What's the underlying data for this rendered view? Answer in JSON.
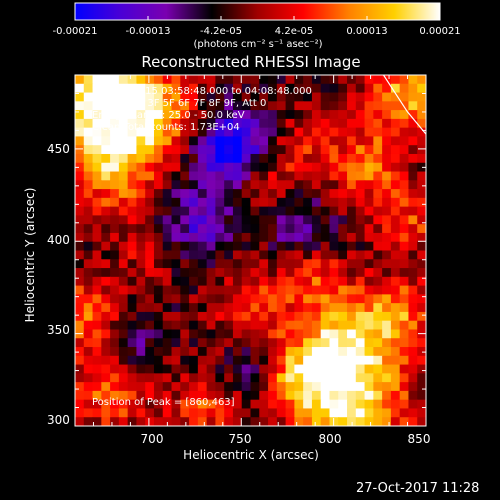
{
  "colorbar": {
    "tick_labels": [
      "-0.00021",
      "-0.00013",
      "-4.2e-05",
      "4.2e-05",
      "0.00013",
      "0.00021"
    ],
    "unit_label": "(photons cm⁻² s⁻¹ asec⁻²)",
    "colormap": [
      "#0000ff",
      "#4a00d6",
      "#7a00b0",
      "#000000",
      "#a00000",
      "#ff0000",
      "#ff8000",
      "#ffd000",
      "#ffffff"
    ]
  },
  "chart_data": {
    "type": "heatmap",
    "title": "Reconstructed RHESSI Image",
    "xlabel": "Heliocentric X (arcsec)",
    "ylabel": "Heliocentric Y (arcsec)",
    "xlim": [
      660,
      850
    ],
    "ylim": [
      300,
      490
    ],
    "x_ticks": [
      700,
      750,
      800,
      850
    ],
    "y_ticks": [
      300,
      350,
      400,
      450
    ],
    "x_tick_labels": [
      "700",
      "750",
      "800",
      "850"
    ],
    "y_tick_labels": [
      "300",
      "350",
      "400",
      "450"
    ],
    "zlim": [
      -0.00021,
      0.00021
    ],
    "info_lines": [
      "28-May-2015 03:58:48.000 to 04:08:48.000",
      "Detectors: 3F 5F 6F 7F 8F 9F, Att 0",
      "Energy Range: 25.0 - 50.0 keV",
      "Clean     Total counts: 1.73E+04"
    ],
    "peak_label": "Position of Peak = [860,463]",
    "limb_curve": [
      [
        827,
        490
      ],
      [
        840,
        470
      ],
      [
        850,
        458
      ]
    ],
    "sources": [
      {
        "x": 668,
        "y": 480,
        "w": 22,
        "v": 0.00021
      },
      {
        "x": 700,
        "y": 470,
        "w": 18,
        "v": 0.00016
      },
      {
        "x": 680,
        "y": 440,
        "w": 18,
        "v": 0.00014
      },
      {
        "x": 840,
        "y": 480,
        "w": 16,
        "v": 0.00017
      },
      {
        "x": 820,
        "y": 440,
        "w": 14,
        "v": 0.00012
      },
      {
        "x": 840,
        "y": 410,
        "w": 12,
        "v": 0.0001
      },
      {
        "x": 765,
        "y": 435,
        "w": 14,
        "v": 9e-05
      },
      {
        "x": 790,
        "y": 455,
        "w": 12,
        "v": 7e-05
      },
      {
        "x": 805,
        "y": 345,
        "w": 18,
        "v": 0.00018
      },
      {
        "x": 810,
        "y": 310,
        "w": 20,
        "v": 0.00021
      },
      {
        "x": 780,
        "y": 325,
        "w": 14,
        "v": 0.00013
      },
      {
        "x": 835,
        "y": 360,
        "w": 14,
        "v": 0.00013
      },
      {
        "x": 755,
        "y": 365,
        "w": 14,
        "v": 0.0001
      },
      {
        "x": 790,
        "y": 380,
        "w": 12,
        "v": 9e-05
      },
      {
        "x": 665,
        "y": 360,
        "w": 14,
        "v": 0.00013
      },
      {
        "x": 680,
        "y": 320,
        "w": 16,
        "v": 0.00012
      },
      {
        "x": 730,
        "y": 310,
        "w": 12,
        "v": 0.0001
      },
      {
        "x": 700,
        "y": 395,
        "w": 12,
        "v": 6e-05
      },
      {
        "x": 745,
        "y": 450,
        "w": 14,
        "v": -0.00021
      },
      {
        "x": 725,
        "y": 410,
        "w": 14,
        "v": -0.00011
      },
      {
        "x": 780,
        "y": 410,
        "w": 12,
        "v": -9e-05
      },
      {
        "x": 690,
        "y": 345,
        "w": 10,
        "v": -9e-05
      },
      {
        "x": 755,
        "y": 330,
        "w": 10,
        "v": -7e-05
      }
    ]
  },
  "timestamp": "27-Oct-2017 11:28"
}
